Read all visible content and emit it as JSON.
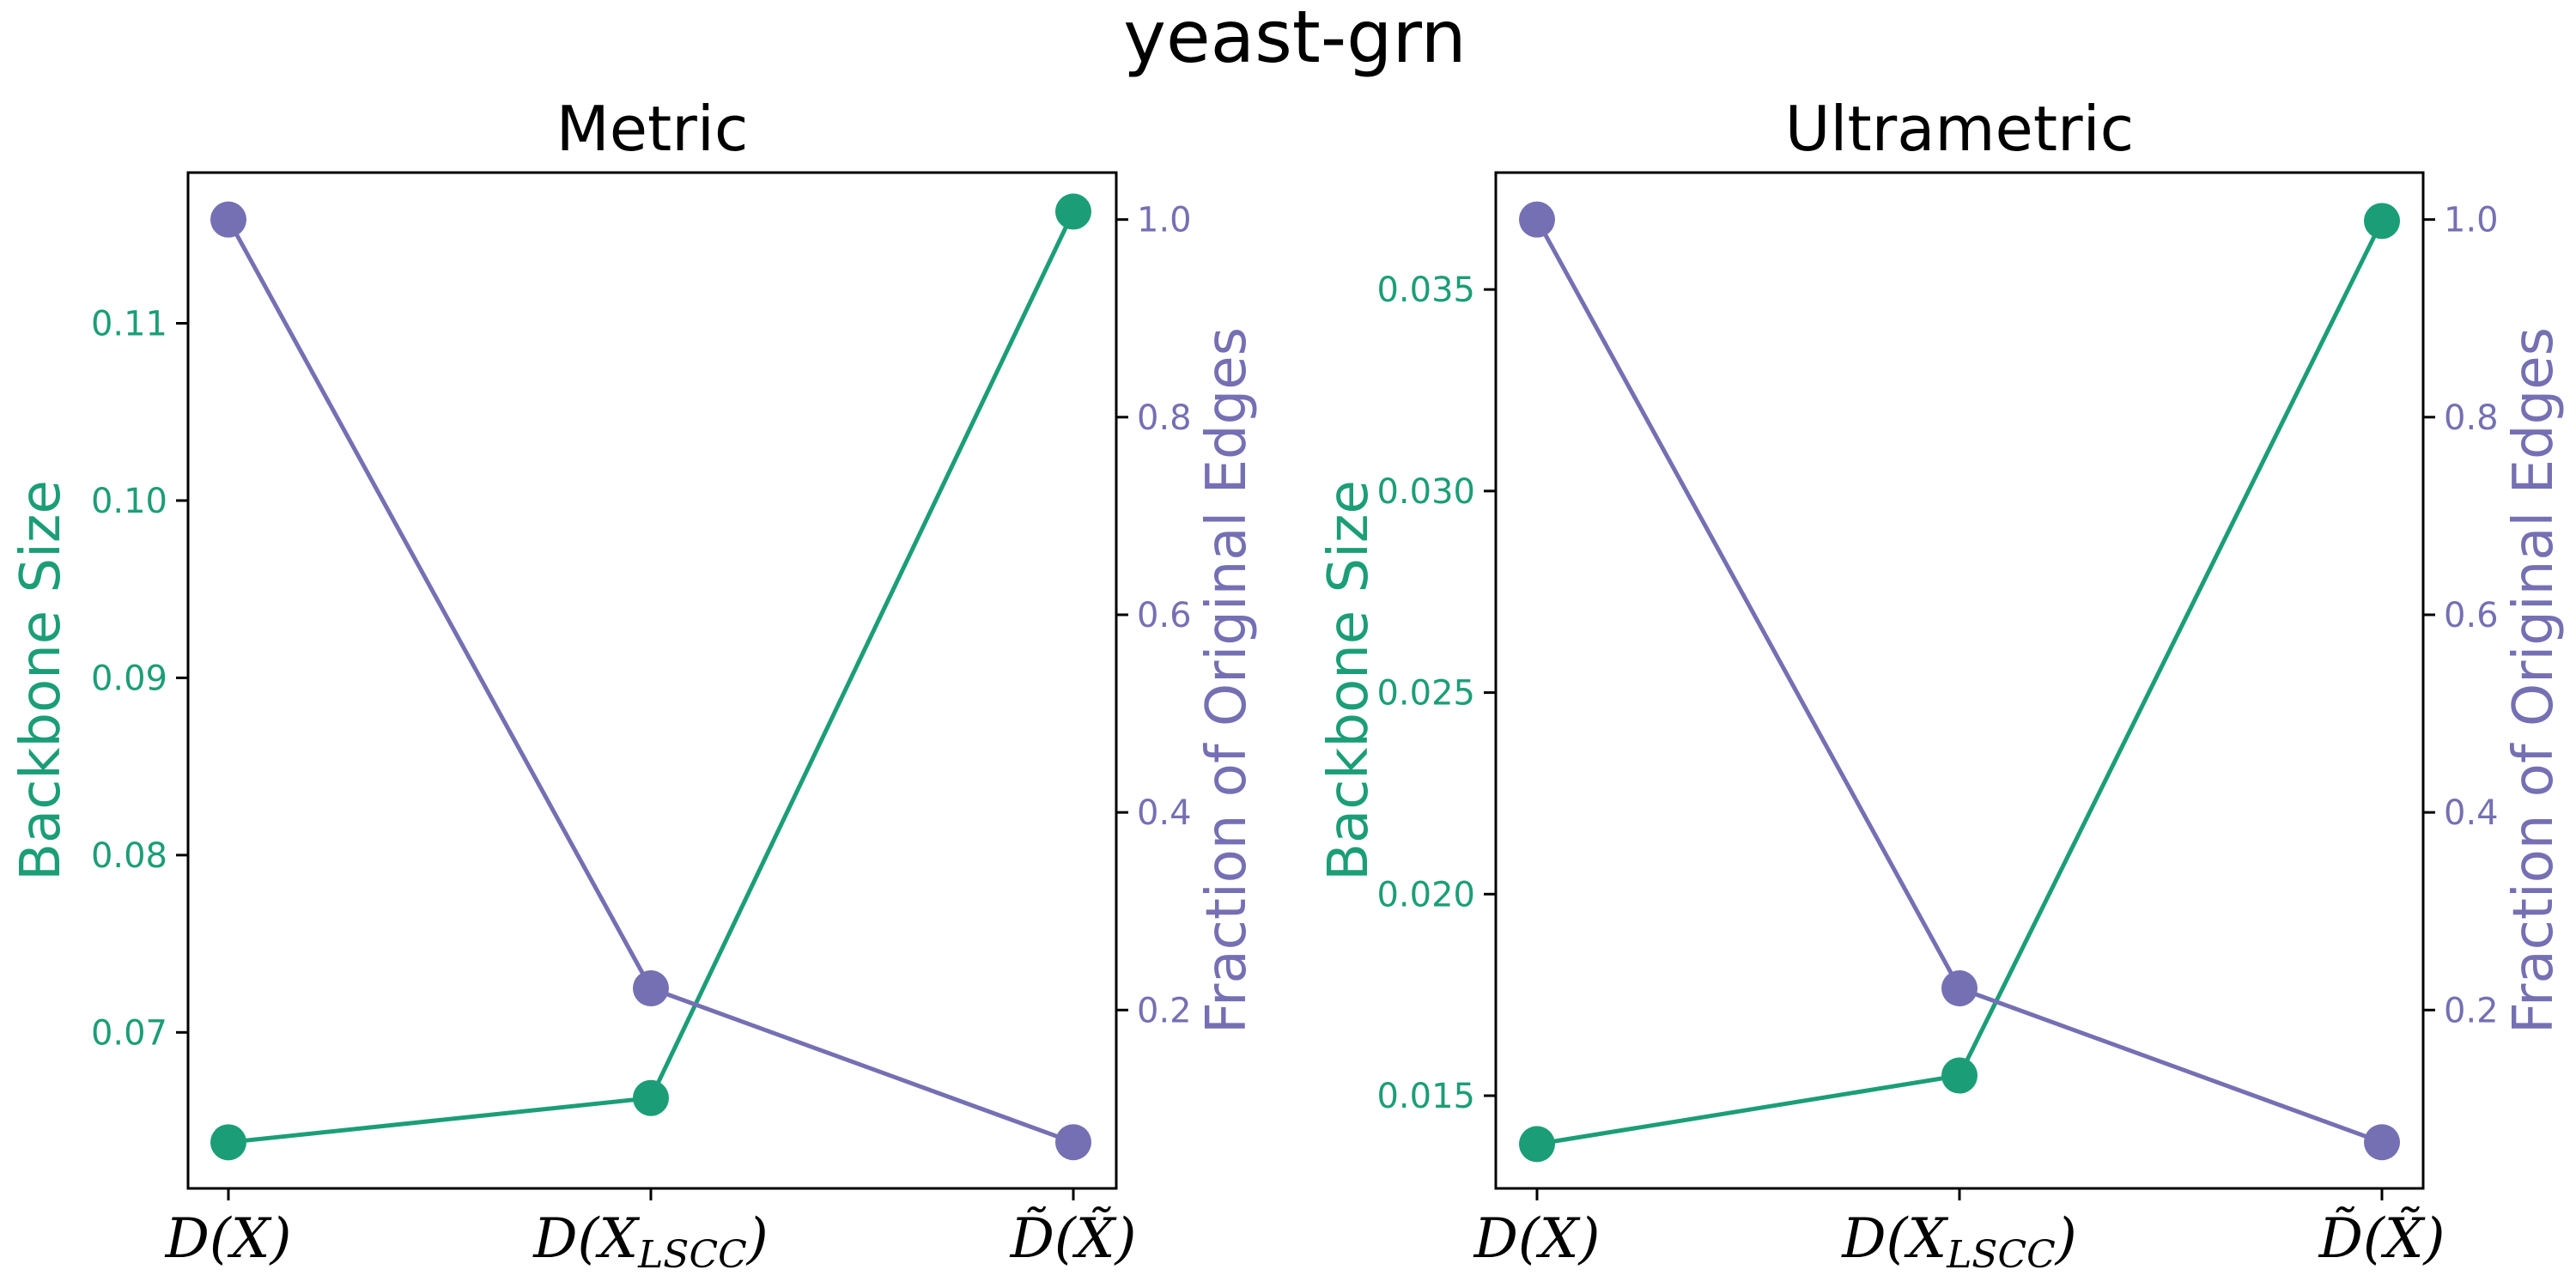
{
  "figure": {
    "title": "yeast-grn",
    "colors": {
      "left_axis": "#1b9e77",
      "right_axis": "#7570b3",
      "frame": "#000000"
    }
  },
  "chart_data": [
    {
      "type": "line",
      "title": "Metric",
      "categories": [
        "D(X)",
        "D(X_LSCC)",
        "D̃(X̃)"
      ],
      "ylabel": "Backbone Size",
      "ylim": [
        0.0612,
        0.1185
      ],
      "yticks": [
        "0.07",
        "0.08",
        "0.09",
        "0.10",
        "0.11"
      ],
      "y2label": "Fraction of Original Edges",
      "y2lim": [
        0.0195,
        1.0475
      ],
      "y2ticks": [
        "0.2",
        "0.4",
        "0.6",
        "0.8",
        "1.0"
      ],
      "series": [
        {
          "axis": "left",
          "color": "#1b9e77",
          "values": [
            0.0638,
            0.0663,
            0.1163
          ]
        },
        {
          "axis": "right",
          "color": "#7570b3",
          "values": [
            1.0,
            0.222,
            0.0662
          ]
        }
      ]
    },
    {
      "type": "line",
      "title": "Ultrametric",
      "categories": [
        "D(X)",
        "D(X_LSCC)",
        "D̃(X̃)"
      ],
      "ylabel": "Backbone Size",
      "ylim": [
        0.0127,
        0.0379
      ],
      "yticks": [
        "0.015",
        "0.020",
        "0.025",
        "0.030",
        "0.035"
      ],
      "y2label": "Fraction of Original Edges",
      "y2lim": [
        0.0195,
        1.0475
      ],
      "y2ticks": [
        "0.2",
        "0.4",
        "0.6",
        "0.8",
        "1.0"
      ],
      "series": [
        {
          "axis": "left",
          "color": "#1b9e77",
          "values": [
            0.0138,
            0.0155,
            0.0367
          ]
        },
        {
          "axis": "right",
          "color": "#7570b3",
          "values": [
            1.0,
            0.222,
            0.0662
          ]
        }
      ]
    }
  ]
}
